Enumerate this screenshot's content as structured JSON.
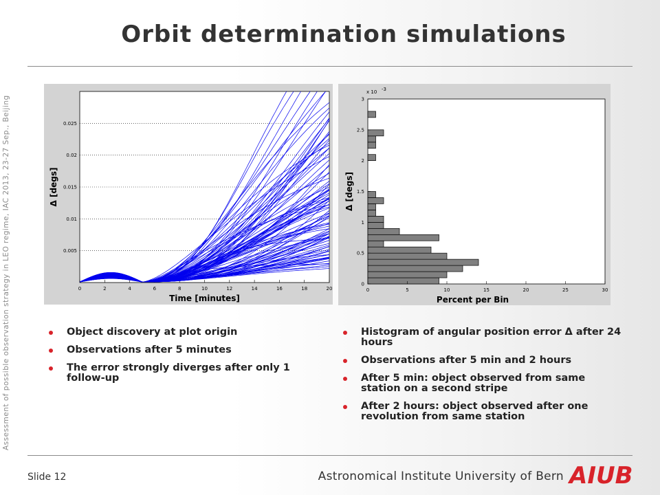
{
  "slide": {
    "title": "Orbit determination simulations",
    "side_text": "Assessment of possible observation strategy in LEO regime, IAC 2013, 23-27 Sep., Beijing",
    "slide_number": "Slide 12",
    "institute": "Astronomical Institute University of Bern",
    "logo_text": "AIUB",
    "accent_color": "#d8232a"
  },
  "bullets_left": [
    "Object discovery at plot origin",
    "Observations after 5 minutes",
    "The error strongly diverges after only 1 follow-up"
  ],
  "bullets_right": [
    "Histogram of angular position error Δ after 24 hours",
    "Observations after 5 min and 2 hours",
    "After 5 min: object observed from same station on a second stripe",
    "After 2 hours: object observed after one revolution from same station"
  ],
  "chart_data": [
    {
      "type": "line",
      "title": "",
      "xlabel": "Time [minutes]",
      "ylabel": "Δ [degs]",
      "xlim": [
        0,
        20
      ],
      "ylim": [
        0,
        0.03
      ],
      "xticks": [
        "0",
        "2",
        "4",
        "6",
        "8",
        "10",
        "12",
        "14",
        "16",
        "18",
        "20"
      ],
      "yticks": [
        "0.005",
        "0.01",
        "0.015",
        "0.02",
        "0.025"
      ],
      "ytick_values": [
        0.005,
        0.01,
        0.015,
        0.02,
        0.025
      ],
      "grid": true,
      "line_color": "#0000ee",
      "series_count": 100,
      "hump_peak": 0.0015,
      "hump_peak_time": 2.5,
      "minimum_time": 5
    },
    {
      "type": "bar",
      "orientation": "horizontal",
      "title": "",
      "xlabel": "Percent per Bin",
      "ylabel": "Δ [degs]",
      "y_scale_label": "x 10",
      "y_scale_exponent": "-3",
      "xlim": [
        0,
        30
      ],
      "ylim": [
        0,
        3
      ],
      "xticks": [
        "0",
        "5",
        "10",
        "15",
        "20",
        "25",
        "30"
      ],
      "yticks": [
        "0",
        "0.5",
        "1",
        "1.5",
        "2",
        "2.5",
        "3"
      ],
      "bar_color": "#808080",
      "bin_width": 0.1,
      "bins": [
        0.05,
        0.15,
        0.25,
        0.35,
        0.45,
        0.55,
        0.65,
        0.75,
        0.85,
        0.95,
        1.05,
        1.15,
        1.25,
        1.35,
        1.45,
        2.05,
        2.25,
        2.35,
        2.45,
        2.75
      ],
      "values": [
        9,
        10,
        12,
        14,
        10,
        8,
        2,
        9,
        4,
        2,
        2,
        1,
        1,
        2,
        1,
        1,
        1,
        1,
        2,
        1
      ]
    }
  ]
}
